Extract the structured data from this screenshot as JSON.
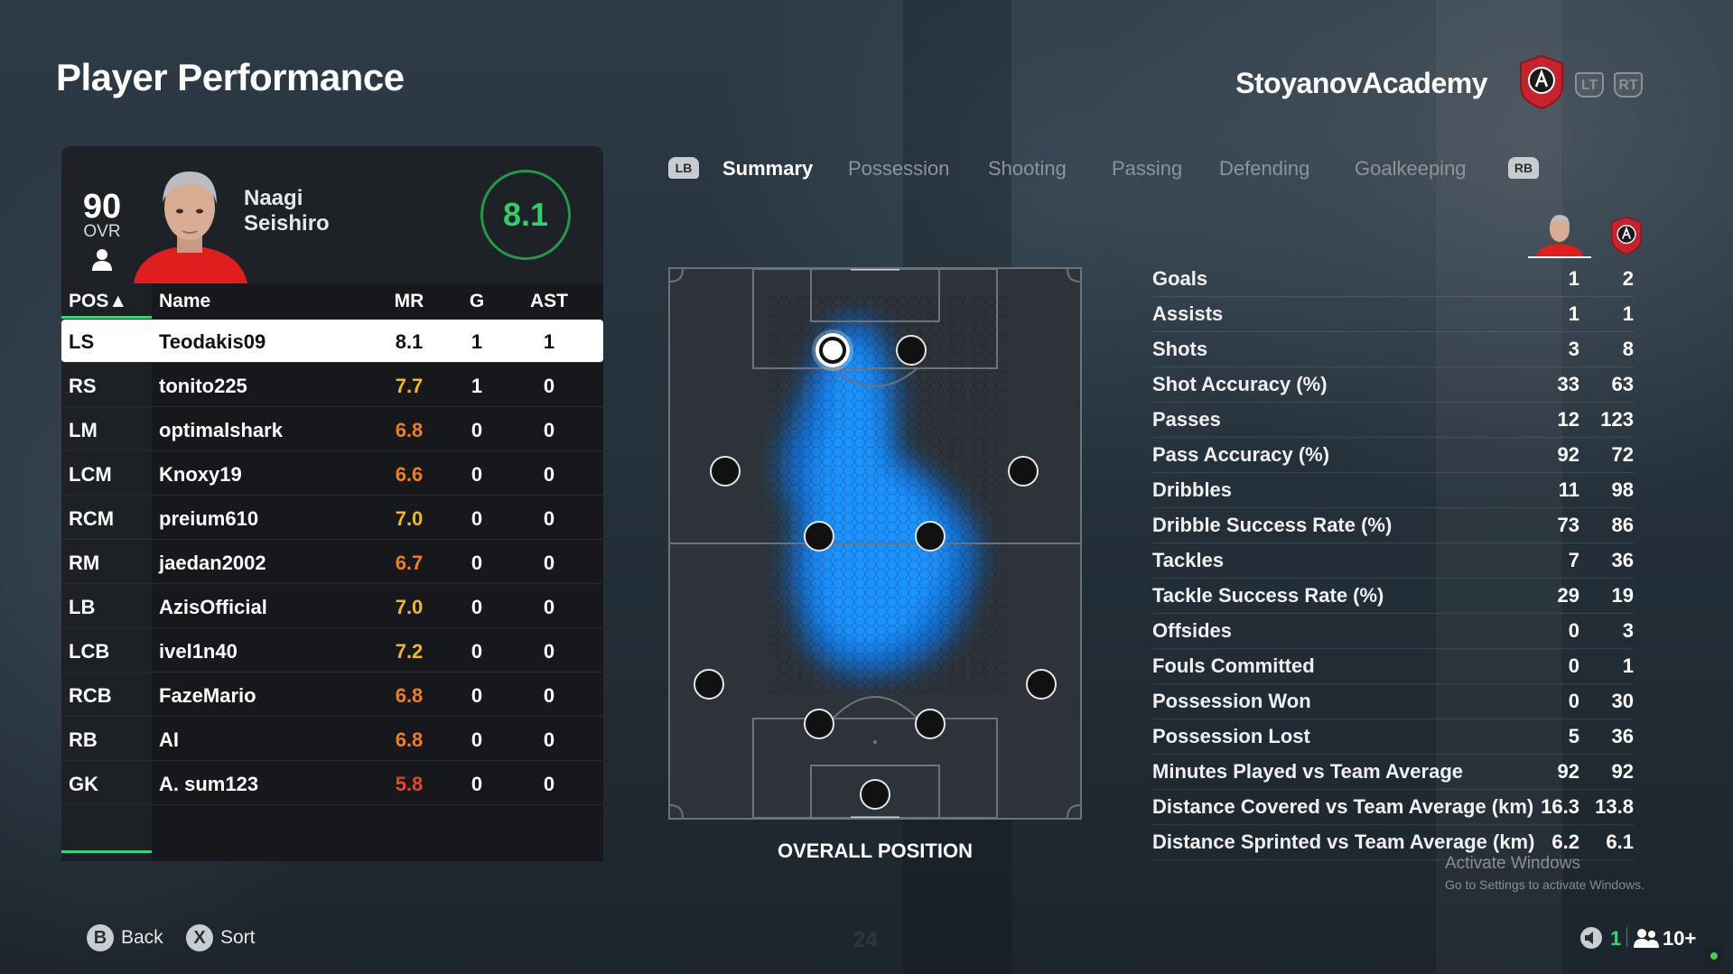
{
  "page": {
    "title": "Player Performance"
  },
  "header": {
    "club_name": "StoyanovAcademy",
    "lt_label": "LT",
    "rt_label": "RT"
  },
  "player_card": {
    "ovr": "90",
    "ovr_label": "OVR",
    "first_name": "Naagi",
    "last_name": "Seishiro",
    "match_rating": "8.1"
  },
  "table": {
    "headers": {
      "pos": "POS▲",
      "name": "Name",
      "mr": "MR",
      "g": "G",
      "ast": "AST"
    },
    "rows": [
      {
        "pos": "LS",
        "name": "Teodakis09",
        "mr": "8.1",
        "g": "1",
        "ast": "1",
        "mr_color": "#111111"
      },
      {
        "pos": "RS",
        "name": "tonito225",
        "mr": "7.7",
        "g": "1",
        "ast": "0",
        "mr_color": "#f2b81c"
      },
      {
        "pos": "LM",
        "name": "optimalshark",
        "mr": "6.8",
        "g": "0",
        "ast": "0",
        "mr_color": "#f07f1a"
      },
      {
        "pos": "LCM",
        "name": "Knoxy19",
        "mr": "6.6",
        "g": "0",
        "ast": "0",
        "mr_color": "#f07f1a"
      },
      {
        "pos": "RCM",
        "name": "preium610",
        "mr": "7.0",
        "g": "0",
        "ast": "0",
        "mr_color": "#f2b81c"
      },
      {
        "pos": "RM",
        "name": "jaedan2002",
        "mr": "6.7",
        "g": "0",
        "ast": "0",
        "mr_color": "#f07f1a"
      },
      {
        "pos": "LB",
        "name": "AzisOfficial",
        "mr": "7.0",
        "g": "0",
        "ast": "0",
        "mr_color": "#f2b81c"
      },
      {
        "pos": "LCB",
        "name": "ivel1n40",
        "mr": "7.2",
        "g": "0",
        "ast": "0",
        "mr_color": "#f2b81c"
      },
      {
        "pos": "RCB",
        "name": "FazeMario",
        "mr": "6.8",
        "g": "0",
        "ast": "0",
        "mr_color": "#f07f1a"
      },
      {
        "pos": "RB",
        "name": "AI",
        "mr": "6.8",
        "g": "0",
        "ast": "0",
        "mr_color": "#f07f1a"
      },
      {
        "pos": "GK",
        "name": "A. sum123",
        "mr": "5.8",
        "g": "0",
        "ast": "0",
        "mr_color": "#e8462b"
      }
    ]
  },
  "tabs": {
    "lb": "LB",
    "rb": "RB",
    "items": [
      "Summary",
      "Possession",
      "Shooting",
      "Passing",
      "Defending",
      "Goalkeeping"
    ],
    "active_index": 0
  },
  "pitch": {
    "caption": "OVERALL POSITION",
    "heatmap_color": "#1a8fff"
  },
  "stats": [
    {
      "label": "Goals",
      "player": "1",
      "team": "2"
    },
    {
      "label": "Assists",
      "player": "1",
      "team": "1"
    },
    {
      "label": "Shots",
      "player": "3",
      "team": "8"
    },
    {
      "label": "Shot Accuracy (%)",
      "player": "33",
      "team": "63"
    },
    {
      "label": "Passes",
      "player": "12",
      "team": "123"
    },
    {
      "label": "Pass Accuracy (%)",
      "player": "92",
      "team": "72"
    },
    {
      "label": "Dribbles",
      "player": "11",
      "team": "98"
    },
    {
      "label": "Dribble Success Rate (%)",
      "player": "73",
      "team": "86"
    },
    {
      "label": "Tackles",
      "player": "7",
      "team": "36"
    },
    {
      "label": "Tackle Success Rate (%)",
      "player": "29",
      "team": "19"
    },
    {
      "label": "Offsides",
      "player": "0",
      "team": "3"
    },
    {
      "label": "Fouls Committed",
      "player": "0",
      "team": "1"
    },
    {
      "label": "Possession Won",
      "player": "0",
      "team": "30"
    },
    {
      "label": "Possession Lost",
      "player": "5",
      "team": "36"
    },
    {
      "label": "Minutes Played vs Team Average",
      "player": "92",
      "team": "92"
    },
    {
      "label": "Distance Covered vs Team Average (km)",
      "player": "16.3",
      "team": "13.8"
    },
    {
      "label": "Distance Sprinted vs Team Average (km)",
      "player": "6.2",
      "team": "6.1"
    }
  ],
  "watermark": {
    "line1": "Activate Windows",
    "line2": "Go to Settings to activate Windows."
  },
  "footer": {
    "back_key": "B",
    "back_label": "Back",
    "sort_key": "X",
    "sort_label": "Sort",
    "faint_number": "24",
    "status_count": "1",
    "players_label": "10+"
  },
  "colors": {
    "accent_green": "#36d27a",
    "crest_red": "#c8232c"
  }
}
